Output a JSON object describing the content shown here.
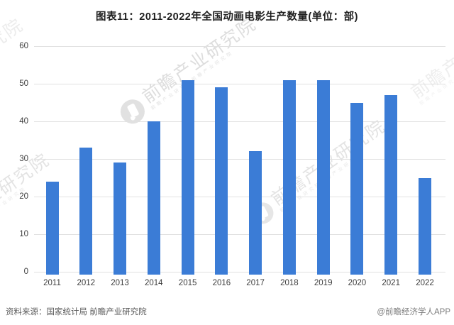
{
  "title": "图表11：2011-2022年全国动画电影生产数量(单位：部)",
  "chart_data": {
    "type": "bar",
    "title": "图表11：2011-2022年全国动画电影生产数量(单位：部)",
    "categories": [
      "2011",
      "2012",
      "2013",
      "2014",
      "2015",
      "2016",
      "2017",
      "2018",
      "2019",
      "2020",
      "2021",
      "2022"
    ],
    "values": [
      24,
      33,
      29,
      40,
      51,
      49,
      32,
      51,
      51,
      45,
      47,
      25
    ],
    "xlabel": "",
    "ylabel": "",
    "ylim": [
      0,
      60
    ],
    "yticks": [
      0,
      10,
      20,
      30,
      40,
      50,
      60
    ],
    "grid": "horizontal",
    "legend": "none",
    "bar_color": "#3b7cd6",
    "gridline_color": "#e1e1e1"
  },
  "footer": {
    "source": "资料来源：国家统计局 前瞻产业研究院",
    "credit": "@前瞻经济学人APP"
  },
  "watermark": {
    "text": "前瞻产业研究院",
    "subtext": "前瞻产业研究院前瞻产业研究院",
    "logo": "qianzhan-logo"
  }
}
